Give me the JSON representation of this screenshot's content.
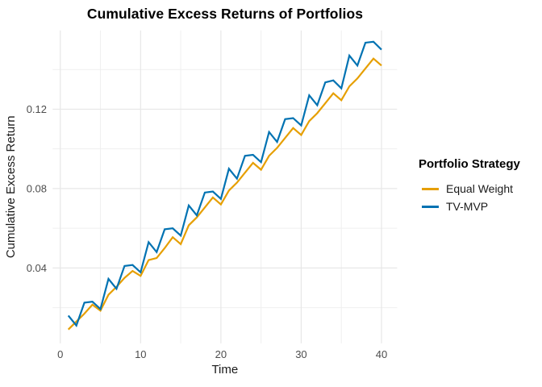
{
  "chart_data": {
    "type": "line",
    "title": "Cumulative Excess Returns of Portfolios",
    "xlabel": "Time",
    "ylabel": "Cumulative Excess Return",
    "legend_title": "Portfolio Strategy",
    "legend_position": "right",
    "background": "#FFFFFF",
    "grid": true,
    "grid_color_major": "#E7E7E7",
    "grid_color_minor": "#EFEFEF",
    "tick_label_color": "#4D4D4D",
    "axis_title_color": "#1A1A1A",
    "xlim": [
      -0.95,
      41.95
    ],
    "ylim": [
      0.002,
      0.1597
    ],
    "x_ticks": [
      0,
      10,
      20,
      30,
      40
    ],
    "x_tick_labels": [
      "0",
      "10",
      "20",
      "30",
      "40"
    ],
    "x_minor_ticks": [
      5,
      15,
      25,
      35
    ],
    "y_ticks": [
      0.04,
      0.08,
      0.12
    ],
    "y_tick_labels": [
      "0.04",
      "0.08",
      "0.12"
    ],
    "y_minor_ticks": [
      0.02,
      0.06,
      0.1,
      0.14
    ],
    "x": [
      1,
      2,
      3,
      4,
      5,
      6,
      7,
      8,
      9,
      10,
      11,
      12,
      13,
      14,
      15,
      16,
      17,
      18,
      19,
      20,
      21,
      22,
      23,
      24,
      25,
      26,
      27,
      28,
      29,
      30,
      31,
      32,
      33,
      34,
      35,
      36,
      37,
      38,
      39,
      40
    ],
    "series": [
      {
        "name": "Equal Weight",
        "color": "#E69F00",
        "values": [
          0.009,
          0.013,
          0.017,
          0.0215,
          0.0185,
          0.0265,
          0.0305,
          0.035,
          0.0385,
          0.036,
          0.044,
          0.045,
          0.05,
          0.0555,
          0.052,
          0.0615,
          0.0655,
          0.0705,
          0.0755,
          0.072,
          0.079,
          0.083,
          0.088,
          0.093,
          0.0895,
          0.0965,
          0.1005,
          0.1055,
          0.1105,
          0.107,
          0.114,
          0.118,
          0.123,
          0.128,
          0.1245,
          0.1315,
          0.1355,
          0.1405,
          0.1455,
          0.142
        ]
      },
      {
        "name": "TV-MVP",
        "color": "#0072B2",
        "values": [
          0.016,
          0.011,
          0.0225,
          0.023,
          0.0193,
          0.0345,
          0.0295,
          0.041,
          0.0415,
          0.0378,
          0.053,
          0.048,
          0.0595,
          0.06,
          0.0563,
          0.0715,
          0.0665,
          0.078,
          0.0785,
          0.0748,
          0.09,
          0.085,
          0.0965,
          0.097,
          0.0933,
          0.1085,
          0.1035,
          0.115,
          0.1155,
          0.1118,
          0.127,
          0.122,
          0.1335,
          0.1345,
          0.1305,
          0.147,
          0.142,
          0.1535,
          0.154,
          0.15
        ]
      }
    ]
  }
}
